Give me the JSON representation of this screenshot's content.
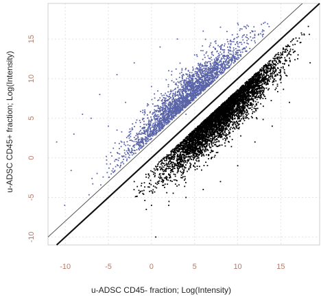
{
  "chart_data": {
    "type": "scatter",
    "title": "",
    "xlabel": "u-ADSC CD45- fraction; Log(Intensity)",
    "ylabel": "u-ADSC CD45+ fraction; Log(Intensity)",
    "xlim": [
      -12,
      19.5
    ],
    "ylim": [
      -11,
      19.5
    ],
    "x_ticks": [
      -10,
      -5,
      0,
      5,
      10,
      15
    ],
    "y_ticks": [
      -10,
      -5,
      0,
      5,
      10,
      15
    ],
    "x_tick_labels": [
      "-10",
      "-5",
      "0",
      "5",
      "10",
      "15"
    ],
    "y_tick_labels": [
      "-10",
      "-5",
      "0",
      "5",
      "10",
      "15"
    ],
    "grid": true,
    "reference_lines": [
      {
        "name": "y = x",
        "slope": 1,
        "intercept": 0,
        "color": "#111111"
      },
      {
        "name": "y = x + 2",
        "slope": 1,
        "intercept": 2,
        "color": "#555555"
      }
    ],
    "series": [
      {
        "color": "#5a64a8",
        "point_count": 2600,
        "points": [
          [
            -11,
            2
          ],
          [
            -9,
            3
          ],
          [
            -8,
            5.5
          ],
          [
            -7,
            5
          ],
          [
            -6,
            8
          ],
          [
            -5,
            4
          ],
          [
            -4,
            10.5
          ],
          [
            -4,
            3.5
          ],
          [
            -3,
            7
          ],
          [
            -2,
            12
          ],
          [
            -1,
            6
          ],
          [
            0,
            9
          ],
          [
            1,
            14
          ],
          [
            2,
            11
          ],
          [
            3,
            15
          ],
          [
            4,
            5.5
          ],
          [
            5,
            13
          ],
          [
            6,
            16
          ],
          [
            7,
            10
          ],
          [
            8,
            16.5
          ],
          [
            9,
            12
          ],
          [
            10,
            17
          ],
          [
            11,
            14
          ],
          [
            12,
            16
          ],
          [
            13,
            17
          ]
        ]
      },
      {
        "color": "#000000",
        "point_count": 5200,
        "points": [
          [
            -2,
            -3
          ],
          [
            -1,
            -4.5
          ],
          [
            0,
            -6
          ],
          [
            0.5,
            -10
          ],
          [
            1,
            -2
          ],
          [
            2,
            -6
          ],
          [
            3,
            -1
          ],
          [
            4,
            -5
          ],
          [
            5,
            0
          ],
          [
            6,
            -4
          ],
          [
            7,
            2
          ],
          [
            8,
            -3
          ],
          [
            9,
            4
          ],
          [
            10,
            -1
          ],
          [
            11,
            6
          ],
          [
            12,
            2
          ],
          [
            13,
            8
          ],
          [
            14,
            4
          ],
          [
            15,
            10
          ],
          [
            16,
            7
          ],
          [
            17,
            13
          ]
        ]
      }
    ]
  }
}
